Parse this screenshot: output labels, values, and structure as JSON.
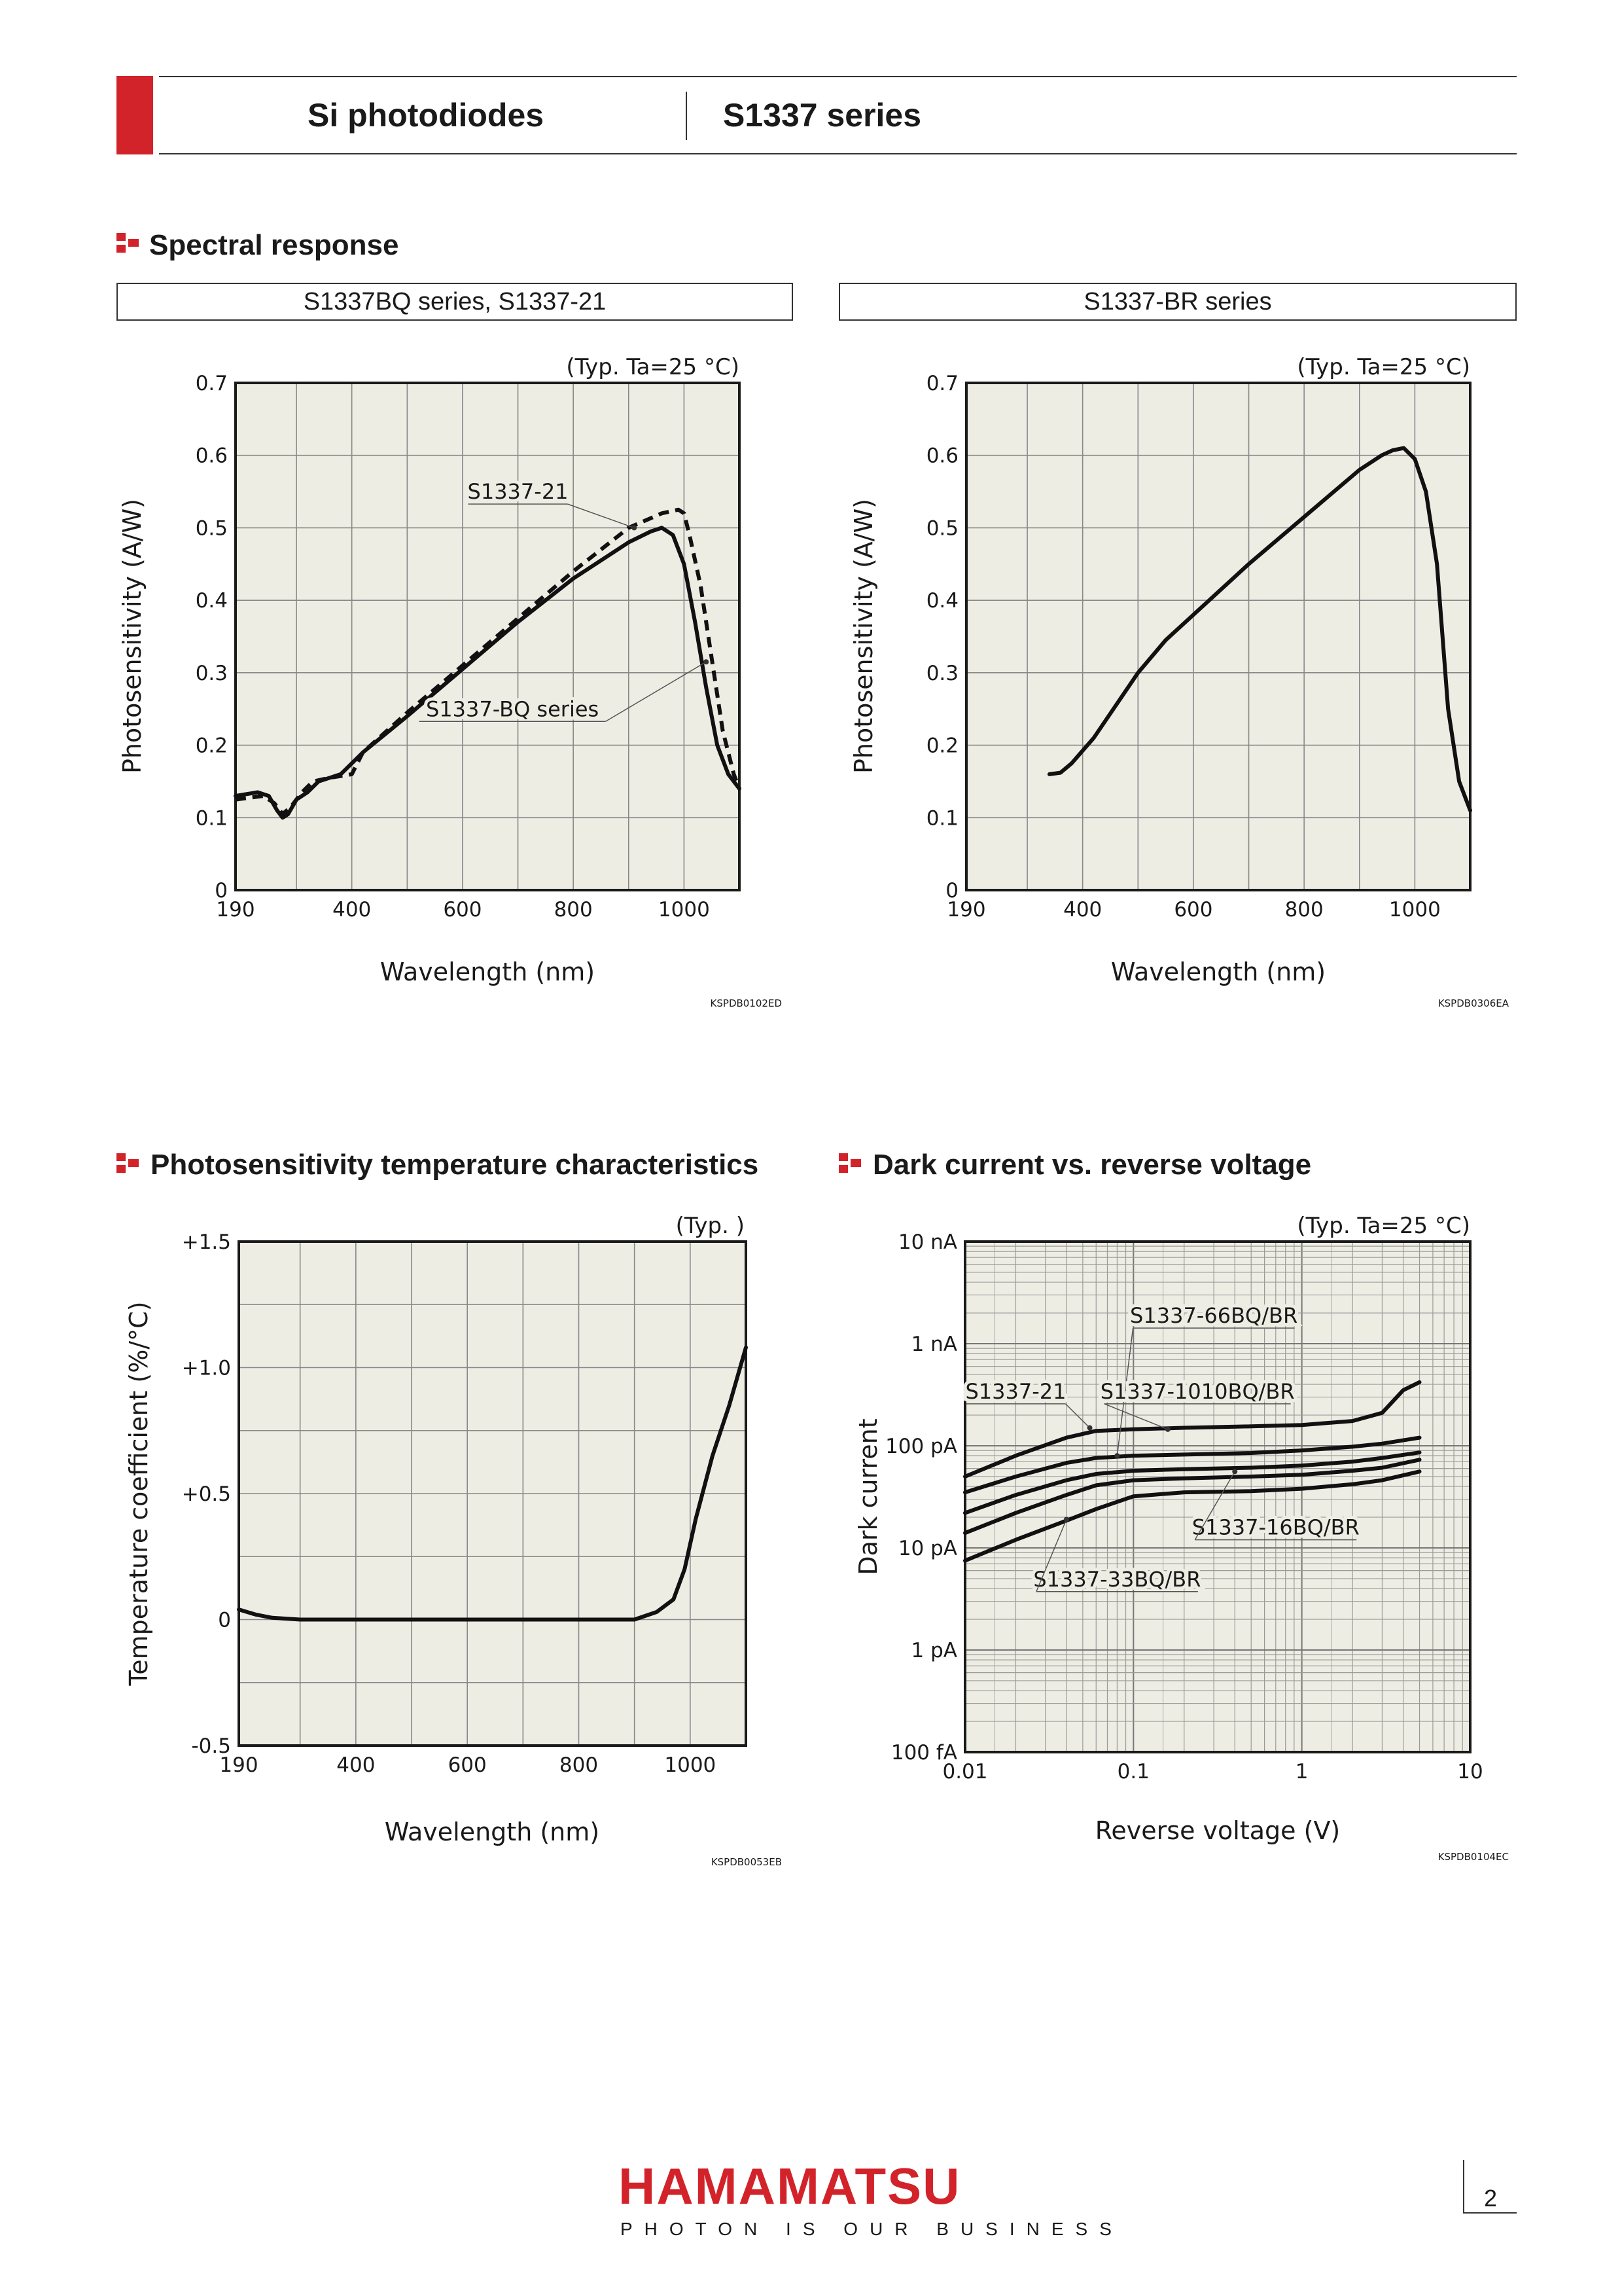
{
  "header": {
    "product": "Si photodiodes",
    "series": "S1337 series"
  },
  "sections": {
    "spectral": "Spectral response",
    "tempchar": "Photosensitivity temperature characteristics",
    "darkcurrent": "Dark current vs. reverse voltage"
  },
  "footer": {
    "logo": "HAMAMATSU",
    "slogan": "PHOTON IS OUR BUSINESS",
    "page": "2"
  },
  "chart_data": [
    {
      "id": "c1",
      "type": "line",
      "subtitle": "S1337BQ series, S1337-21",
      "note": "(Typ. Ta=25 °C)",
      "xlabel": "Wavelength (nm)",
      "ylabel": "Photosensitivity (A/W)",
      "code": "KSPDB0102ED",
      "xlim": [
        190,
        1100
      ],
      "ylim": [
        0,
        0.7
      ],
      "xticks": [
        190,
        400,
        600,
        800,
        1000
      ],
      "xtick_labels": [
        "190",
        "400",
        "600",
        "800",
        "1000"
      ],
      "yticks": [
        0,
        0.1,
        0.2,
        0.3,
        0.4,
        0.5,
        0.6,
        0.7
      ],
      "ytick_labels": [
        "0",
        "0.1",
        "0.2",
        "0.3",
        "0.4",
        "0.5",
        "0.6",
        "0.7"
      ],
      "xgrid": [
        190,
        300,
        400,
        500,
        600,
        700,
        800,
        900,
        1000,
        1100
      ],
      "ygrid": [
        0,
        0.1,
        0.2,
        0.3,
        0.4,
        0.5,
        0.6,
        0.7
      ],
      "grid": true,
      "series": [
        {
          "name": "S1337-BQ series",
          "dashed": false,
          "x": [
            190,
            230,
            250,
            265,
            275,
            285,
            300,
            320,
            340,
            380,
            420,
            500,
            600,
            700,
            800,
            900,
            940,
            960,
            980,
            1000,
            1020,
            1040,
            1060,
            1080,
            1100
          ],
          "y": [
            0.13,
            0.135,
            0.13,
            0.11,
            0.1,
            0.105,
            0.125,
            0.135,
            0.15,
            0.16,
            0.19,
            0.24,
            0.305,
            0.37,
            0.43,
            0.48,
            0.495,
            0.5,
            0.49,
            0.45,
            0.37,
            0.28,
            0.2,
            0.16,
            0.14
          ]
        },
        {
          "name": "S1337-21",
          "dashed": true,
          "x": [
            190,
            240,
            260,
            275,
            290,
            310,
            330,
            360,
            400,
            420,
            500,
            600,
            700,
            800,
            900,
            960,
            990,
            1000,
            1010,
            1030,
            1050,
            1070,
            1090,
            1100
          ],
          "y": [
            0.125,
            0.13,
            0.12,
            0.105,
            0.115,
            0.135,
            0.15,
            0.155,
            0.16,
            0.19,
            0.245,
            0.31,
            0.375,
            0.44,
            0.5,
            0.52,
            0.525,
            0.52,
            0.49,
            0.42,
            0.32,
            0.22,
            0.16,
            0.14
          ]
        }
      ],
      "annotations": [
        {
          "text": "S1337-21",
          "tx": 700,
          "ty": 0.54,
          "ax": 910,
          "ay": 0.5
        },
        {
          "text": "S1337-BQ series",
          "tx": 690,
          "ty": 0.24,
          "ax": 1040,
          "ay": 0.315
        }
      ]
    },
    {
      "id": "c2",
      "type": "line",
      "subtitle": "S1337-BR series",
      "note": "(Typ. Ta=25 °C)",
      "xlabel": "Wavelength (nm)",
      "ylabel": "Photosensitivity (A/W)",
      "code": "KSPDB0306EA",
      "xlim": [
        190,
        1100
      ],
      "ylim": [
        0,
        0.7
      ],
      "xticks": [
        190,
        400,
        600,
        800,
        1000
      ],
      "xtick_labels": [
        "190",
        "400",
        "600",
        "800",
        "1000"
      ],
      "yticks": [
        0,
        0.1,
        0.2,
        0.3,
        0.4,
        0.5,
        0.6,
        0.7
      ],
      "ytick_labels": [
        "0",
        "0.1",
        "0.2",
        "0.3",
        "0.4",
        "0.5",
        "0.6",
        "0.7"
      ],
      "xgrid": [
        190,
        300,
        400,
        500,
        600,
        700,
        800,
        900,
        1000,
        1100
      ],
      "ygrid": [
        0,
        0.1,
        0.2,
        0.3,
        0.4,
        0.5,
        0.6,
        0.7
      ],
      "grid": true,
      "series": [
        {
          "name": "",
          "dashed": false,
          "x": [
            340,
            360,
            380,
            420,
            500,
            550,
            600,
            700,
            800,
            900,
            940,
            960,
            980,
            1000,
            1020,
            1040,
            1050,
            1060,
            1080,
            1100
          ],
          "y": [
            0.16,
            0.162,
            0.175,
            0.21,
            0.3,
            0.345,
            0.38,
            0.45,
            0.515,
            0.58,
            0.6,
            0.607,
            0.61,
            0.595,
            0.55,
            0.45,
            0.35,
            0.25,
            0.15,
            0.11
          ]
        }
      ],
      "annotations": []
    },
    {
      "id": "c3",
      "type": "line",
      "subtitle": "",
      "note": "(Typ. )",
      "xlabel": "Wavelength (nm)",
      "ylabel": "Temperature coefficient (%/°C)",
      "code": "KSPDB0053EB",
      "xlim": [
        190,
        1100
      ],
      "ylim": [
        -0.5,
        1.5
      ],
      "xticks": [
        190,
        400,
        600,
        800,
        1000
      ],
      "xtick_labels": [
        "190",
        "400",
        "600",
        "800",
        "1000"
      ],
      "yticks": [
        -0.5,
        0,
        0.5,
        1.0,
        1.5
      ],
      "ytick_labels": [
        "-0.5",
        "0",
        "+0.5",
        "+1.0",
        "+1.5"
      ],
      "xgrid": [
        190,
        300,
        400,
        500,
        600,
        700,
        800,
        900,
        1000,
        1100
      ],
      "ygrid": [
        -0.5,
        -0.25,
        0,
        0.25,
        0.5,
        0.75,
        1.0,
        1.25,
        1.5
      ],
      "grid": true,
      "series": [
        {
          "name": "",
          "dashed": false,
          "x": [
            190,
            220,
            250,
            300,
            400,
            600,
            800,
            900,
            940,
            970,
            990,
            1010,
            1040,
            1070,
            1100
          ],
          "y": [
            0.04,
            0.02,
            0.007,
            0,
            0,
            0,
            0,
            0,
            0.03,
            0.08,
            0.2,
            0.4,
            0.65,
            0.85,
            1.08
          ]
        }
      ],
      "annotations": []
    },
    {
      "id": "c4",
      "type": "line",
      "subtitle": "",
      "note": "(Typ. Ta=25 °C)",
      "xlabel": "Reverse voltage (V)",
      "ylabel": "Dark current",
      "code": "KSPDB0104EC",
      "xscale": "log",
      "yscale": "log",
      "xlim": [
        0.01,
        10
      ],
      "ylim": [
        1e-13,
        1e-08
      ],
      "xticks": [
        0.01,
        0.1,
        1,
        10
      ],
      "xtick_labels": [
        "0.01",
        "0.1",
        "1",
        "10"
      ],
      "yticks": [
        1e-13,
        1e-12,
        1e-11,
        1e-10,
        1e-09,
        1e-08
      ],
      "ytick_labels": [
        "100 fA",
        "1 pA",
        "10 pA",
        "100 pA",
        "1 nA",
        "10 nA"
      ],
      "grid": true,
      "series": [
        {
          "name": "S1337-21",
          "dashed": false,
          "x": [
            0.01,
            0.02,
            0.04,
            0.06,
            0.1,
            0.2,
            0.5,
            1,
            2,
            3,
            4,
            5
          ],
          "y": [
            5e-11,
            8e-11,
            1.2e-10,
            1.4e-10,
            1.45e-10,
            1.5e-10,
            1.55e-10,
            1.6e-10,
            1.75e-10,
            2.1e-10,
            3.5e-10,
            4.2e-10
          ]
        },
        {
          "name": "S1337-1010BQ/BR",
          "dashed": false,
          "x": [
            0.01,
            0.02,
            0.04,
            0.06,
            0.1,
            0.2,
            0.5,
            1,
            2,
            3,
            5
          ],
          "y": [
            3.5e-11,
            5e-11,
            6.8e-11,
            7.6e-11,
            8e-11,
            8.2e-11,
            8.5e-11,
            9e-11,
            9.8e-11,
            1.05e-10,
            1.2e-10
          ]
        },
        {
          "name": "S1337-66BQ/BR",
          "dashed": false,
          "x": [
            0.01,
            0.02,
            0.04,
            0.06,
            0.1,
            0.2,
            0.5,
            1,
            2,
            3,
            5
          ],
          "y": [
            2.2e-11,
            3.3e-11,
            4.6e-11,
            5.3e-11,
            5.7e-11,
            5.9e-11,
            6.1e-11,
            6.4e-11,
            7e-11,
            7.6e-11,
            8.6e-11
          ]
        },
        {
          "name": "S1337-16BQ/BR",
          "dashed": false,
          "x": [
            0.01,
            0.02,
            0.04,
            0.06,
            0.1,
            0.2,
            0.5,
            1,
            2,
            3,
            5
          ],
          "y": [
            1.4e-11,
            2.2e-11,
            3.3e-11,
            4.1e-11,
            4.6e-11,
            4.8e-11,
            5e-11,
            5.2e-11,
            5.7e-11,
            6.1e-11,
            7.3e-11
          ]
        },
        {
          "name": "S1337-33BQ/BR",
          "dashed": false,
          "x": [
            0.01,
            0.02,
            0.04,
            0.06,
            0.1,
            0.2,
            0.5,
            1,
            2,
            3,
            5
          ],
          "y": [
            7.5e-12,
            1.2e-11,
            1.85e-11,
            2.4e-11,
            3.2e-11,
            3.5e-11,
            3.6e-11,
            3.8e-11,
            4.2e-11,
            4.6e-11,
            5.6e-11
          ]
        }
      ],
      "annotations": [
        {
          "text": "S1337-66BQ/BR",
          "tx": 0.3,
          "ty": 1.6e-09,
          "ax": 0.08,
          "ay": 8e-11
        },
        {
          "text": "S1337-21",
          "tx": 0.02,
          "ty": 2.9e-10,
          "ax": 0.055,
          "ay": 1.5e-10
        },
        {
          "text": "S1337-1010BQ/BR",
          "tx": 0.24,
          "ty": 2.9e-10,
          "ax": 0.16,
          "ay": 1.45e-10
        },
        {
          "text": "S1337-16BQ/BR",
          "tx": 0.7,
          "ty": 1.35e-11,
          "ax": 0.4,
          "ay": 5.6e-11
        },
        {
          "text": "S1337-33BQ/BR",
          "tx": 0.08,
          "ty": 4.2e-12,
          "ax": 0.04,
          "ay": 1.9e-11
        }
      ]
    }
  ]
}
